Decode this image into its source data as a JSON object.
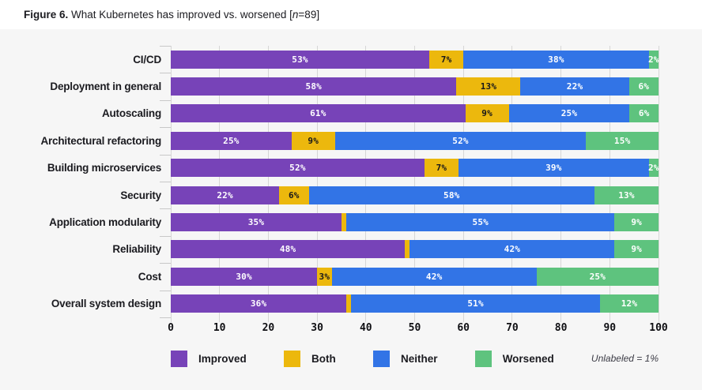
{
  "caption": {
    "figure_label": "Figure 6.",
    "title_text": " What Kubernetes has improved vs. worsened [",
    "n_symbol": "n",
    "n_suffix": "=89]"
  },
  "legend": {
    "items": [
      {
        "key": "improved",
        "label": "Improved"
      },
      {
        "key": "both",
        "label": "Both"
      },
      {
        "key": "neither",
        "label": "Neither"
      },
      {
        "key": "worsened",
        "label": "Worsened"
      }
    ],
    "note": "Unlabeled = 1%"
  },
  "chart_data": {
    "type": "bar",
    "orientation": "horizontal-stacked",
    "title": "What Kubernetes has improved vs. worsened [n=89]",
    "xlabel": "",
    "ylabel": "",
    "xlim": [
      0,
      100
    ],
    "x_ticks": [
      0,
      10,
      20,
      30,
      40,
      50,
      60,
      70,
      80,
      90,
      100
    ],
    "grid": "vertical",
    "legend_position": "bottom",
    "unlabeled_note": "Unlabeled = 1%",
    "colors": {
      "improved": {
        "fill": "#7743b8",
        "text": "#ffffff"
      },
      "both": {
        "fill": "#ecb80d",
        "text": "#17171b"
      },
      "neither": {
        "fill": "#3274e6",
        "text": "#ffffff"
      },
      "worsened": {
        "fill": "#5ec37e",
        "text": "#ffffff"
      }
    },
    "rows": [
      {
        "category": "CI/CD",
        "segments": [
          {
            "key": "improved",
            "value": 53,
            "label": "53%"
          },
          {
            "key": "both",
            "value": 7,
            "label": "7%"
          },
          {
            "key": "neither",
            "value": 38,
            "label": "38%"
          },
          {
            "key": "worsened",
            "value": 2,
            "label": "2%"
          }
        ]
      },
      {
        "category": "Deployment in general",
        "segments": [
          {
            "key": "improved",
            "value": 58,
            "label": "58%"
          },
          {
            "key": "both",
            "value": 13,
            "label": "13%"
          },
          {
            "key": "neither",
            "value": 22,
            "label": "22%"
          },
          {
            "key": "worsened",
            "value": 6,
            "label": "6%"
          }
        ]
      },
      {
        "category": "Autoscaling",
        "segments": [
          {
            "key": "improved",
            "value": 61,
            "label": "61%"
          },
          {
            "key": "both",
            "value": 9,
            "label": "9%"
          },
          {
            "key": "neither",
            "value": 25,
            "label": "25%"
          },
          {
            "key": "worsened",
            "value": 6,
            "label": "6%"
          }
        ]
      },
      {
        "category": "Architectural refactoring",
        "segments": [
          {
            "key": "improved",
            "value": 25,
            "label": "25%"
          },
          {
            "key": "both",
            "value": 9,
            "label": "9%"
          },
          {
            "key": "neither",
            "value": 52,
            "label": "52%"
          },
          {
            "key": "worsened",
            "value": 15,
            "label": "15%"
          }
        ]
      },
      {
        "category": "Building microservices",
        "segments": [
          {
            "key": "improved",
            "value": 52,
            "label": "52%"
          },
          {
            "key": "both",
            "value": 7,
            "label": "7%"
          },
          {
            "key": "neither",
            "value": 39,
            "label": "39%"
          },
          {
            "key": "worsened",
            "value": 2,
            "label": "2%"
          }
        ]
      },
      {
        "category": "Security",
        "segments": [
          {
            "key": "improved",
            "value": 22,
            "label": "22%"
          },
          {
            "key": "both",
            "value": 6,
            "label": "6%"
          },
          {
            "key": "neither",
            "value": 58,
            "label": "58%"
          },
          {
            "key": "worsened",
            "value": 13,
            "label": "13%"
          }
        ]
      },
      {
        "category": "Application modularity",
        "segments": [
          {
            "key": "improved",
            "value": 35,
            "label": "35%"
          },
          {
            "key": "both",
            "value": 1,
            "label": ""
          },
          {
            "key": "neither",
            "value": 55,
            "label": "55%"
          },
          {
            "key": "worsened",
            "value": 9,
            "label": "9%"
          }
        ]
      },
      {
        "category": "Reliability",
        "segments": [
          {
            "key": "improved",
            "value": 48,
            "label": "48%"
          },
          {
            "key": "both",
            "value": 1,
            "label": ""
          },
          {
            "key": "neither",
            "value": 42,
            "label": "42%"
          },
          {
            "key": "worsened",
            "value": 9,
            "label": "9%"
          }
        ]
      },
      {
        "category": "Cost",
        "segments": [
          {
            "key": "improved",
            "value": 30,
            "label": "30%"
          },
          {
            "key": "both",
            "value": 3,
            "label": "3%"
          },
          {
            "key": "neither",
            "value": 42,
            "label": "42%"
          },
          {
            "key": "worsened",
            "value": 25,
            "label": "25%"
          }
        ]
      },
      {
        "category": "Overall system design",
        "segments": [
          {
            "key": "improved",
            "value": 36,
            "label": "36%"
          },
          {
            "key": "both",
            "value": 1,
            "label": ""
          },
          {
            "key": "neither",
            "value": 51,
            "label": "51%"
          },
          {
            "key": "worsened",
            "value": 12,
            "label": "12%"
          }
        ]
      }
    ]
  }
}
